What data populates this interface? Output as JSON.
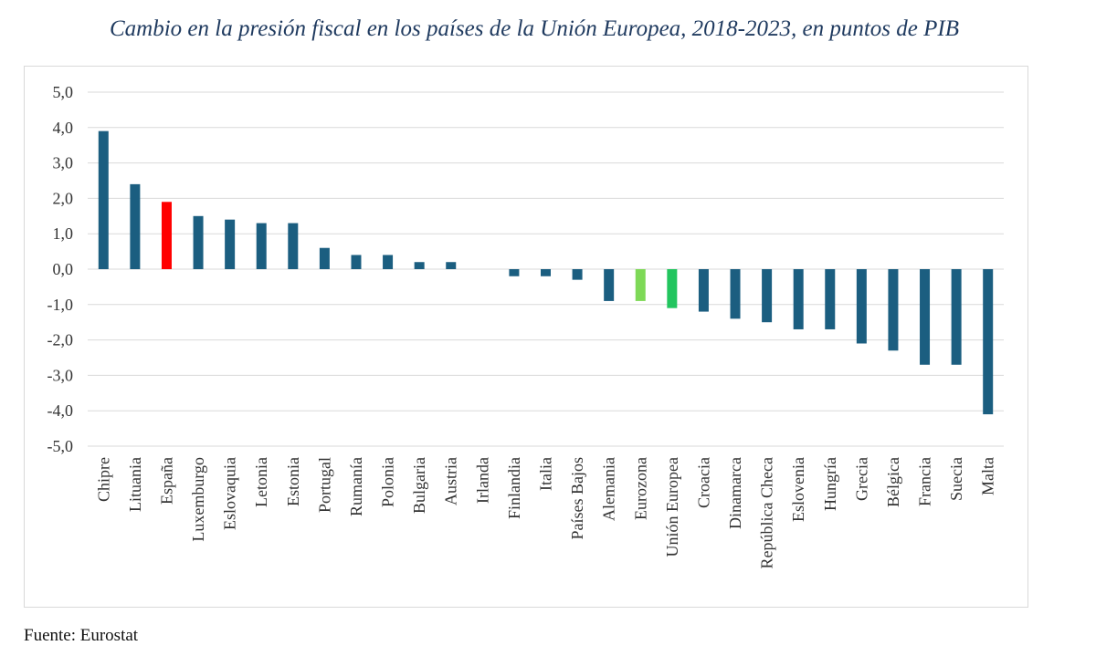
{
  "title": "Cambio en la presión fiscal en los países de la Unión Europea, 2018-2023, en puntos de PIB",
  "source": "Fuente: Eurostat",
  "colors": {
    "default": "#1b5e80",
    "spain": "#ff0000",
    "eurozona": "#7ed957",
    "ue": "#22c55e",
    "grid": "#d9d9d9"
  },
  "chart_data": {
    "type": "bar",
    "title": "Cambio en la presión fiscal en los países de la Unión Europea, 2018-2023, en puntos de PIB",
    "xlabel": "",
    "ylabel": "",
    "ylim": [
      -5,
      5
    ],
    "yticks": [
      "5,0",
      "4,0",
      "3,0",
      "2,0",
      "1,0",
      "0,0",
      "-1,0",
      "-2,0",
      "-3,0",
      "-4,0",
      "-5,0"
    ],
    "ytick_values": [
      5,
      4,
      3,
      2,
      1,
      0,
      -1,
      -2,
      -3,
      -4,
      -5
    ],
    "grid": true,
    "categories": [
      "Chipre",
      "Lituania",
      "España",
      "Luxemburgo",
      "Eslovaquia",
      "Letonia",
      "Estonia",
      "Portugal",
      "Rumanía",
      "Polonia",
      "Bulgaria",
      "Austria",
      "Irlanda",
      "Finlandia",
      "Italia",
      "Países Bajos",
      "Alemania",
      "Eurozona",
      "Unión Europea",
      "Croacia",
      "Dinamarca",
      "República Checa",
      "Eslovenia",
      "Hungría",
      "Grecia",
      "Bélgica",
      "Francia",
      "Suecia",
      "Malta"
    ],
    "values": [
      3.9,
      2.4,
      1.9,
      1.5,
      1.4,
      1.3,
      1.3,
      0.6,
      0.4,
      0.4,
      0.2,
      0.2,
      0.0,
      -0.2,
      -0.2,
      -0.3,
      -0.9,
      -0.9,
      -1.1,
      -1.2,
      -1.4,
      -1.5,
      -1.7,
      -1.7,
      -2.1,
      -2.3,
      -2.7,
      -2.7,
      -4.1
    ],
    "highlight": {
      "España": "spain",
      "Eurozona": "eurozona",
      "Unión Europea": "ue"
    }
  }
}
